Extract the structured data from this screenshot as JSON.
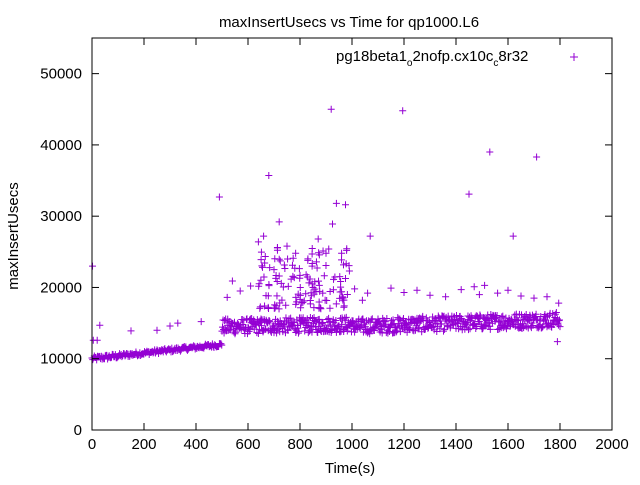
{
  "chart_data": {
    "type": "scatter",
    "title": "maxInsertUsecs vs Time for qp1000.L6",
    "xlabel": "Time(s)",
    "ylabel": "maxInsertUsecs",
    "xlim": [
      0,
      2000
    ],
    "ylim": [
      0,
      55000
    ],
    "x_ticks": [
      0,
      200,
      400,
      600,
      800,
      1000,
      1200,
      1400,
      1600,
      1800,
      2000
    ],
    "y_ticks": [
      0,
      10000,
      20000,
      30000,
      40000,
      50000
    ],
    "x_tick_labels": [
      "0",
      "200",
      "400",
      "600",
      "800",
      "1000",
      "1200",
      "1400",
      "1600",
      "1800",
      "2000"
    ],
    "y_tick_labels": [
      "0",
      "10000",
      "20000",
      "30000",
      "40000",
      "50000"
    ],
    "grid": false,
    "legend_position": "top-right",
    "marker": "plus",
    "series": [
      {
        "name": "pg18beta1_o2nofp.cx10c_c8r32",
        "name_parts": {
          "p1": "pg18beta1",
          "s1": "o",
          "p2": "2nofp.cx10c",
          "s2": "c",
          "p3": "8r32"
        },
        "color": "#9400d3",
        "segments": [
          {
            "x_start": 0,
            "x_end": 100,
            "y_start": 10000,
            "y_end": 10400,
            "spread": 700,
            "step": 3
          },
          {
            "x_start": 100,
            "x_end": 500,
            "y_start": 10400,
            "y_end": 12000,
            "spread": 600,
            "step": 3
          },
          {
            "x_start": 500,
            "x_end": 1000,
            "y_start": 14500,
            "y_end": 14800,
            "spread": 2200,
            "step": 2
          },
          {
            "x_start": 1000,
            "x_end": 1800,
            "y_start": 14500,
            "y_end": 15500,
            "spread": 2200,
            "step": 2
          }
        ],
        "burst": [
          {
            "x_start": 640,
            "x_end": 990,
            "y_min": 17000,
            "y_max": 26000,
            "count": 130
          }
        ],
        "points": [
          [
            2,
            23000
          ],
          [
            5,
            12600
          ],
          [
            30,
            14700
          ],
          [
            20,
            12600
          ],
          [
            150,
            13900
          ],
          [
            250,
            14000
          ],
          [
            300,
            14600
          ],
          [
            330,
            15000
          ],
          [
            420,
            15200
          ],
          [
            490,
            32700
          ],
          [
            520,
            18600
          ],
          [
            540,
            20900
          ],
          [
            570,
            19500
          ],
          [
            610,
            20200
          ],
          [
            640,
            26400
          ],
          [
            660,
            27200
          ],
          [
            680,
            35700
          ],
          [
            700,
            22500
          ],
          [
            720,
            29200
          ],
          [
            750,
            25800
          ],
          [
            780,
            22700
          ],
          [
            800,
            21700
          ],
          [
            830,
            23800
          ],
          [
            850,
            20000
          ],
          [
            870,
            26800
          ],
          [
            900,
            24800
          ],
          [
            920,
            45000
          ],
          [
            925,
            28900
          ],
          [
            940,
            31800
          ],
          [
            960,
            24800
          ],
          [
            975,
            31600
          ],
          [
            990,
            22300
          ],
          [
            1010,
            19800
          ],
          [
            1040,
            18200
          ],
          [
            1060,
            19200
          ],
          [
            1070,
            27200
          ],
          [
            1150,
            19900
          ],
          [
            1195,
            44800
          ],
          [
            1200,
            19300
          ],
          [
            1250,
            19600
          ],
          [
            1300,
            18900
          ],
          [
            1360,
            18700
          ],
          [
            1420,
            19700
          ],
          [
            1450,
            33100
          ],
          [
            1470,
            20100
          ],
          [
            1490,
            19000
          ],
          [
            1510,
            20300
          ],
          [
            1530,
            39000
          ],
          [
            1560,
            19200
          ],
          [
            1600,
            19600
          ],
          [
            1620,
            27200
          ],
          [
            1650,
            18800
          ],
          [
            1700,
            18500
          ],
          [
            1710,
            38300
          ],
          [
            1750,
            18700
          ],
          [
            1790,
            12400
          ],
          [
            1795,
            17800
          ]
        ]
      }
    ]
  }
}
